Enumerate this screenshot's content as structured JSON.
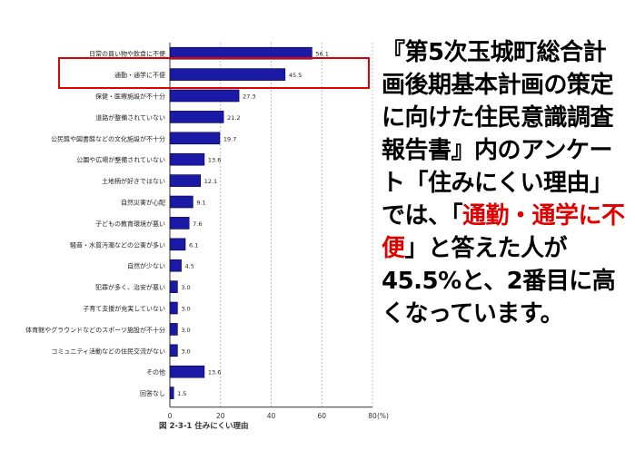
{
  "chart_data": {
    "type": "bar",
    "orientation": "horizontal",
    "categories": [
      "日常の買い物や飲食に不便",
      "通勤・通学に不便",
      "保健・医療施設が不十分",
      "道路が整備されていない",
      "公民館や図書館などの文化施設が不十分",
      "公園や広場が整備されていない",
      "土地柄が好きではない",
      "自然災害が心配",
      "子どもの教育環境が悪い",
      "騒音・水質汚濁などの公害が多い",
      "自然が少ない",
      "犯罪が多く、治安が悪い",
      "子育て支援が充実していない",
      "体育館やグラウンドなどのスポーツ施設が不十分",
      "コミュニティ活動などの住民交流がない",
      "その他",
      "回答なし"
    ],
    "values": [
      56.1,
      45.5,
      27.3,
      21.2,
      19.7,
      13.6,
      12.1,
      9.1,
      7.6,
      6.1,
      4.5,
      3.0,
      3.0,
      3.0,
      3.0,
      13.6,
      1.5
    ],
    "value_labels": [
      "56.1",
      "45.5",
      "27.3",
      "21.2",
      "19.7",
      "13.6",
      "12.1",
      "9.1",
      "7.6",
      "6.1",
      "4.5",
      "3.0",
      "3.0",
      "3.0",
      "3.0",
      "13.6",
      "1.5"
    ],
    "xlim": [
      0,
      80
    ],
    "x_ticks": [
      "0",
      "20",
      "40",
      "60",
      "80"
    ],
    "unit_label": "(%)",
    "grid": true,
    "bar_color": "#1a1aa6",
    "highlight_color": "#e00000",
    "highlighted_category": "通勤・通学に不便",
    "figure_caption": "図 2-3-1 住みにくい理由"
  },
  "caption": {
    "text_before": "『第5次玉城町総合計画後期基本計画の策定に向けた住民意識調査　報告書』内のアンケート「住みにくい理由」では、「",
    "highlight": "通勤・通学に不便",
    "text_after": "」と答えた人が45.5%と、2番目に高くなっています。",
    "highlight_color": "#e00000"
  }
}
